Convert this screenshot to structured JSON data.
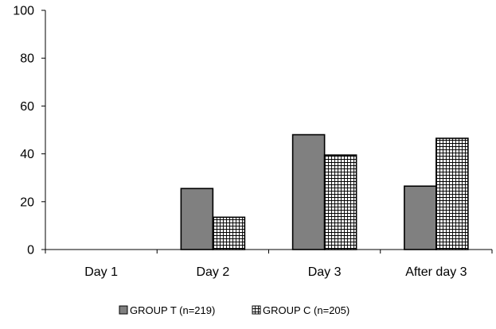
{
  "chart_data": {
    "type": "bar",
    "title": "",
    "xlabel": "",
    "ylabel": "",
    "categories": [
      "Day 1",
      "Day 2",
      "Day 3",
      "After day 3"
    ],
    "series": [
      {
        "name": "GROUP T (n=219)",
        "values": [
          0,
          25.5,
          48,
          26.5
        ],
        "color": "#808080",
        "pattern": "solid"
      },
      {
        "name": "GROUP C (n=205)",
        "values": [
          0,
          13.5,
          39.5,
          46.5
        ],
        "color": "#ffffff",
        "pattern": "grid"
      }
    ],
    "ylim": [
      0,
      100
    ],
    "yticks": [
      0,
      20,
      40,
      60,
      80,
      100
    ],
    "grid": false,
    "legend_position": "bottom-center"
  }
}
